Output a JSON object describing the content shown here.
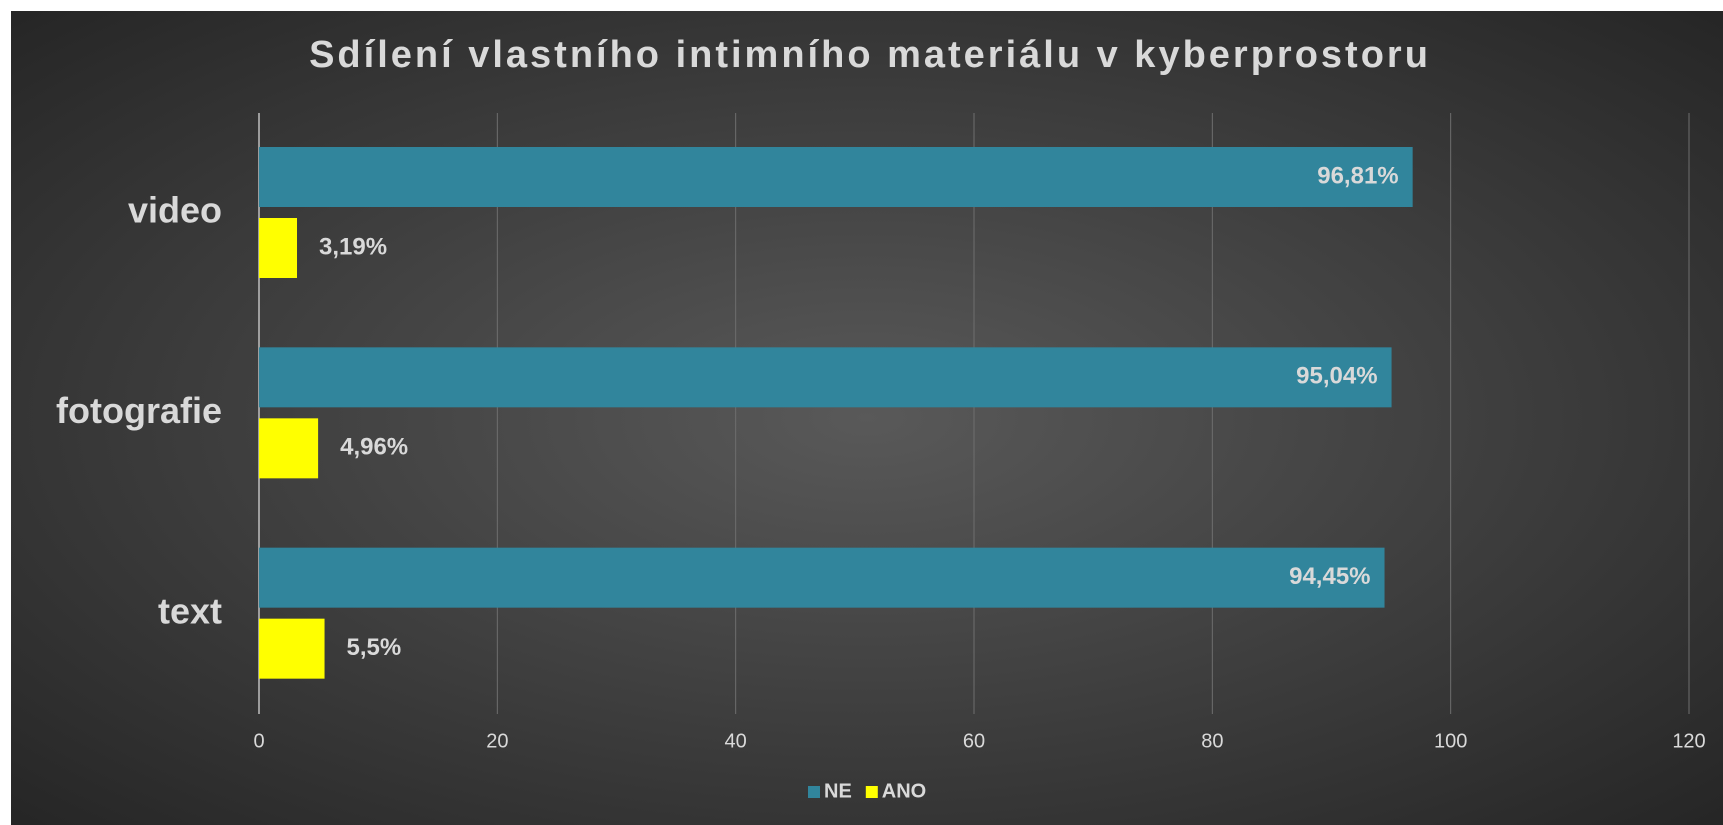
{
  "chart_data": {
    "type": "hbar",
    "title": "Sdílení vlastního intimního materiálu v kyberprostoru",
    "categories": [
      "video",
      "fotografie",
      "text"
    ],
    "series": [
      {
        "name": "NE",
        "color": "#31859c",
        "values": [
          96.81,
          95.04,
          94.45
        ],
        "value_labels": [
          "96,81%",
          "95,04%",
          "94,45%"
        ]
      },
      {
        "name": "ANO",
        "color": "#ffff00",
        "values": [
          3.19,
          4.96,
          5.5
        ],
        "value_labels": [
          "3,19%",
          "4,96%",
          "5,5%"
        ]
      }
    ],
    "xlim": [
      0,
      120
    ],
    "xticks": [
      0,
      20,
      40,
      60,
      80,
      100,
      120
    ],
    "grid": true,
    "legend": "bottom"
  }
}
